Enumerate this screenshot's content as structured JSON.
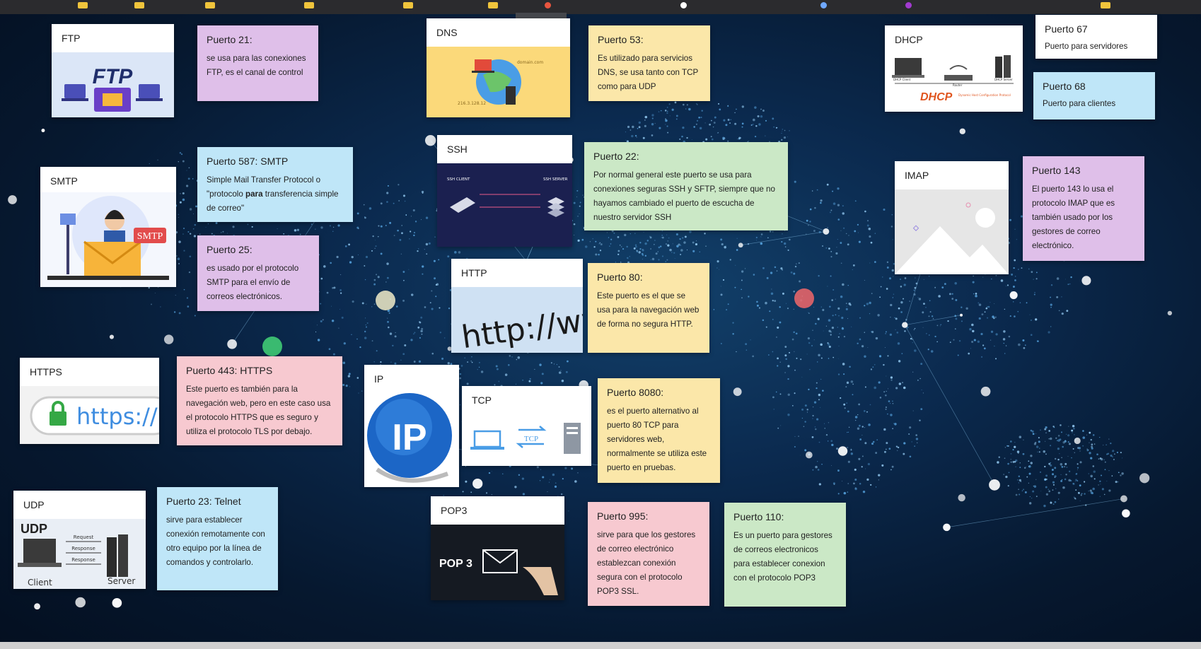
{
  "colors": {
    "bg": "#0b2a4f",
    "pink": "#f7c9d0",
    "lavender": "#dfbfe9",
    "yellow": "#fbe7a9",
    "blue": "#bfe6f8",
    "green": "#cbe8c6"
  },
  "cards": {
    "ftp": {
      "title": "FTP",
      "image_text": "FTP",
      "icon": "ftp-illustration"
    },
    "smtp": {
      "title": "SMTP",
      "image_text": "SMTP",
      "icon": "mail-envelope-illustration"
    },
    "https": {
      "title": "HTTPS",
      "image_text": "https://",
      "icon": "lock-icon"
    },
    "udp": {
      "title": "UDP",
      "image_text": "UDP",
      "client": "Client",
      "server": "Server",
      "req": "Request",
      "resp1": "Response",
      "resp2": "Response",
      "icon": "client-server-illustration"
    },
    "dns": {
      "title": "DNS",
      "domain": "domain.com",
      "ip": "216.3.128.12",
      "icon": "globe-icon"
    },
    "ssh": {
      "title": "SSH",
      "client": "SSH CLIENT",
      "server": "SSH SERVER",
      "icon": "ssh-diagram"
    },
    "http": {
      "title": "HTTP",
      "image_text": "http://ww",
      "icon": "browser-address-illustration"
    },
    "ip": {
      "title": "IP",
      "image_text": "IP",
      "icon": "ip-globe-icon"
    },
    "tcp": {
      "title": "TCP",
      "image_text": "TCP",
      "icon": "tcp-transfer-illustration"
    },
    "pop3": {
      "title": "POP3",
      "image_text": "POP 3",
      "icon": "envelope-icon"
    },
    "dhcp": {
      "title": "DHCP",
      "image_text": "DHCP",
      "sub": "Dynamic Host Configuration Protocol",
      "client": "DHCP Client",
      "router": "Router",
      "server": "DHCP Server",
      "icon": "dhcp-network-illustration"
    },
    "imap": {
      "title": "IMAP",
      "icon": "image-placeholder-icon"
    }
  },
  "notes": {
    "p21": {
      "h": "Puerto 21:",
      "b": "se usa para las conexiones FTP, es el canal de control"
    },
    "p587": {
      "h": "Puerto 587: SMTP",
      "b1": "Simple Mail Transfer Protocol  o \"protocolo ",
      "b2": "para",
      "b3": " transferencia simple de correo\""
    },
    "p25": {
      "h": "Puerto 25:",
      "b": "es usado por el protocolo SMTP para el envío de correos electrónicos."
    },
    "p443": {
      "h": "Puerto 443: HTTPS",
      "b": "Este puerto es también para la navegación web, pero en este caso usa el protocolo HTTPS que es seguro y utiliza el protocolo TLS por debajo."
    },
    "p23": {
      "h": "Puerto 23: Telnet",
      "b": "sirve para establecer conexión remotamente con otro equipo por la línea de comandos y controlarlo."
    },
    "p53": {
      "h": "Puerto 53:",
      "b": "Es utilizado para servicios DNS, se usa tanto con TCP como para UDP"
    },
    "p22": {
      "h": "Puerto 22:",
      "b": "Por normal general este puerto se usa para conexiones seguras SSH y SFTP, siempre que no hayamos cambiado el puerto de escucha de nuestro servidor SSH"
    },
    "p80": {
      "h": "Puerto 80:",
      "b": "Este puerto es el que se usa para la navegación web de forma no segura HTTP."
    },
    "p8080": {
      "h": "Puerto 8080:",
      "b": "es el puerto alternativo al puerto 80 TCP para servidores web, normalmente se utiliza este puerto en pruebas."
    },
    "p995": {
      "h": "Puerto 995:",
      "b": "sirve para que los gestores de correo electrónico establezcan conexión segura con el protocolo POP3 SSL."
    },
    "p110": {
      "h": "Puerto 110:",
      "b": "Es un puerto para gestores de correos electronicos para establecer conexion con el protocolo POP3"
    },
    "p67": {
      "h": "Puerto 67",
      "b": "Puerto para servidores"
    },
    "p68": {
      "h": "Puerto 68",
      "b": "Puerto para clientes"
    },
    "p143": {
      "h": "Puerto 143",
      "b": " El puerto 143 lo usa el protocolo IMAP que es también usado por los gestores de correo electrónico."
    }
  }
}
